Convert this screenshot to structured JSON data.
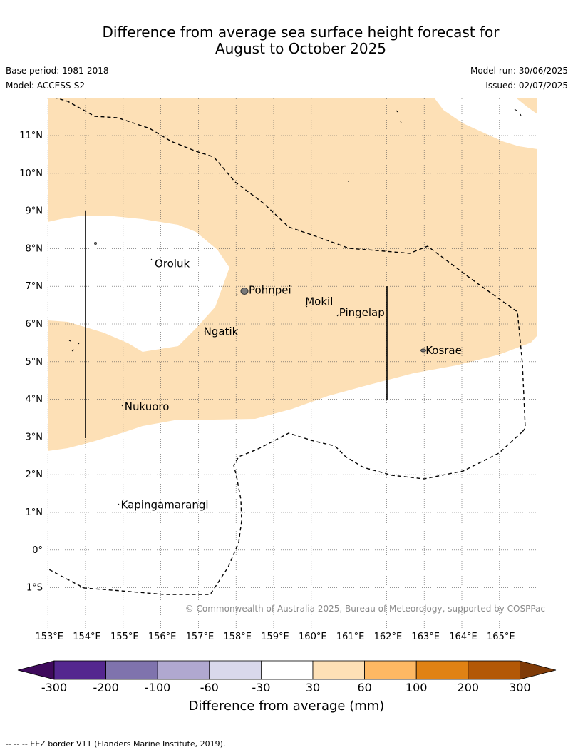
{
  "title_line1": "Difference from average sea surface height forecast for",
  "title_line2": "August to October 2025",
  "base_period": "Base period: 1981-2018",
  "model": "Model: ACCESS-S2",
  "model_run": "Model run: 30/06/2025",
  "issued": "Issued: 02/07/2025",
  "copyright": "© Commonwealth of Australia 2025, Bureau of Meteorology, supported by COSPPac",
  "lat_ticks": [
    {
      "label": "11°N",
      "value": 11
    },
    {
      "label": "10°N",
      "value": 10
    },
    {
      "label": "9°N",
      "value": 9
    },
    {
      "label": "8°N",
      "value": 8
    },
    {
      "label": "7°N",
      "value": 7
    },
    {
      "label": "6°N",
      "value": 6
    },
    {
      "label": "5°N",
      "value": 5
    },
    {
      "label": "4°N",
      "value": 4
    },
    {
      "label": "3°N",
      "value": 3
    },
    {
      "label": "2°N",
      "value": 2
    },
    {
      "label": "1°N",
      "value": 1
    },
    {
      "label": "0°",
      "value": 0
    },
    {
      "label": "1°S",
      "value": -1
    }
  ],
  "lon_ticks": [
    {
      "label": "153°E",
      "value": 153
    },
    {
      "label": "154°E",
      "value": 154
    },
    {
      "label": "155°E",
      "value": 155
    },
    {
      "label": "156°E",
      "value": 156
    },
    {
      "label": "157°E",
      "value": 157
    },
    {
      "label": "158°E",
      "value": 158
    },
    {
      "label": "159°E",
      "value": 159
    },
    {
      "label": "160°E",
      "value": 160
    },
    {
      "label": "161°E",
      "value": 161
    },
    {
      "label": "162°E",
      "value": 162
    },
    {
      "label": "163°E",
      "value": 163
    },
    {
      "label": "164°E",
      "value": 164
    },
    {
      "label": "165°E",
      "value": 165
    }
  ],
  "places": [
    {
      "name": "Oroluk",
      "lon": 155.8,
      "lat": 7.6
    },
    {
      "name": "Pohnpei",
      "lon": 158.3,
      "lat": 6.9
    },
    {
      "name": "Mokil",
      "lon": 159.8,
      "lat": 6.6
    },
    {
      "name": "Pingelap",
      "lon": 160.7,
      "lat": 6.3
    },
    {
      "name": "Ngatik",
      "lon": 157.1,
      "lat": 5.8
    },
    {
      "name": "Kosrae",
      "lon": 163.0,
      "lat": 5.3
    },
    {
      "name": "Nukuoro",
      "lon": 155.0,
      "lat": 3.8
    },
    {
      "name": "Kapingamarangi",
      "lon": 154.9,
      "lat": 1.2
    }
  ],
  "colorbar": {
    "label": "Difference from average (mm)",
    "ticks": [
      "-300",
      "-200",
      "-100",
      "-60",
      "-30",
      "30",
      "60",
      "100",
      "200",
      "300"
    ],
    "colors": [
      "#3f0a5c",
      "#54278f",
      "#7f73ad",
      "#b0a8d0",
      "#d9d8eb",
      "#ffffff",
      "#fde0b6",
      "#fdb863",
      "#e08214",
      "#b35806",
      "#7f3b08"
    ]
  },
  "shading_color": "#fde0b6",
  "footer": "--  --  -- EEZ border V11 (Flanders Marine Institute, 2019)."
}
